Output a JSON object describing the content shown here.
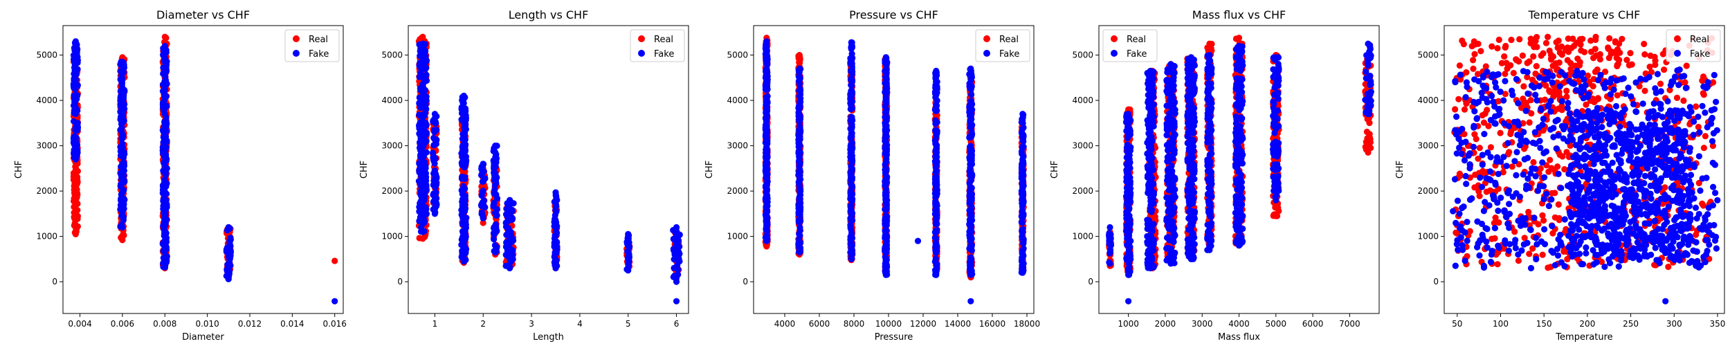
{
  "colors": {
    "real": "#ff0000",
    "fake": "#0000ff"
  },
  "chart_data": [
    {
      "type": "scatter",
      "title": "Diameter vs CHF",
      "xlabel": "Diameter",
      "ylabel": "CHF",
      "xlim": [
        0.0032,
        0.0164
      ],
      "ylim": [
        -700,
        5650
      ],
      "xticks": [
        0.004,
        0.006,
        0.008,
        0.01,
        0.012,
        0.014,
        0.016
      ],
      "xtick_labels": [
        "0.004",
        "0.006",
        "0.008",
        "0.010",
        "0.012",
        "0.014",
        "0.016"
      ],
      "yticks": [
        0,
        1000,
        2000,
        3000,
        4000,
        5000
      ],
      "ytick_labels": [
        "0",
        "1000",
        "2000",
        "3000",
        "4000",
        "5000"
      ],
      "legend": {
        "position": "top-right",
        "entries": [
          "Real",
          "Fake"
        ]
      },
      "series": [
        {
          "name": "Real",
          "clusters": [
            {
              "x": 0.0038,
              "xspread": 0.0001,
              "ymin": 1050,
              "ymax": 4950,
              "density": 2.5
            },
            {
              "x": 0.006,
              "xspread": 0.0001,
              "ymin": 920,
              "ymax": 4950,
              "density": 2.5
            },
            {
              "x": 0.008,
              "xspread": 0.0001,
              "ymin": 300,
              "ymax": 5400,
              "density": 2.5
            },
            {
              "x": 0.011,
              "xspread": 0.0001,
              "ymin": 100,
              "ymax": 1200,
              "density": 2.0
            }
          ],
          "points": [
            [
              0.016,
              460
            ]
          ]
        },
        {
          "name": "Fake",
          "clusters": [
            {
              "x": 0.0038,
              "xspread": 0.0001,
              "ymin": 2700,
              "ymax": 5300,
              "density": 2.5
            },
            {
              "x": 0.006,
              "xspread": 0.0001,
              "ymin": 1200,
              "ymax": 4850,
              "density": 2.5
            },
            {
              "x": 0.008,
              "xspread": 0.0001,
              "ymin": 320,
              "ymax": 5200,
              "density": 2.5
            },
            {
              "x": 0.011,
              "xspread": 0.0001,
              "ymin": 60,
              "ymax": 1200,
              "density": 2.5
            }
          ],
          "points": [
            [
              0.016,
              -430
            ]
          ]
        }
      ]
    },
    {
      "type": "scatter",
      "title": "Length vs CHF",
      "xlabel": "Length",
      "ylabel": "CHF",
      "xlim": [
        0.45,
        6.25
      ],
      "ylim": [
        -700,
        5650
      ],
      "xticks": [
        1,
        2,
        3,
        4,
        5,
        6
      ],
      "xtick_labels": [
        "1",
        "2",
        "3",
        "4",
        "5",
        "6"
      ],
      "yticks": [
        0,
        1000,
        2000,
        3000,
        4000,
        5000
      ],
      "ytick_labels": [
        "0",
        "1000",
        "2000",
        "3000",
        "4000",
        "5000"
      ],
      "legend": {
        "position": "top-right",
        "entries": [
          "Real",
          "Fake"
        ]
      },
      "series": [
        {
          "name": "Real",
          "clusters": [
            {
              "x": 0.75,
              "xspread": 0.08,
              "ymin": 950,
              "ymax": 5400,
              "density": 3.0
            },
            {
              "x": 1.0,
              "xspread": 0.04,
              "ymin": 1600,
              "ymax": 3500,
              "density": 1.5
            },
            {
              "x": 1.6,
              "xspread": 0.04,
              "ymin": 420,
              "ymax": 3600,
              "density": 2.0
            },
            {
              "x": 2.0,
              "xspread": 0.04,
              "ymin": 1300,
              "ymax": 2500,
              "density": 1.5
            },
            {
              "x": 2.25,
              "xspread": 0.04,
              "ymin": 600,
              "ymax": 2600,
              "density": 1.5
            },
            {
              "x": 2.55,
              "xspread": 0.08,
              "ymin": 350,
              "ymax": 1750,
              "density": 1.5
            },
            {
              "x": 3.5,
              "xspread": 0.03,
              "ymin": 300,
              "ymax": 1800,
              "density": 1.5
            },
            {
              "x": 5.0,
              "xspread": 0.03,
              "ymin": 300,
              "ymax": 1000,
              "density": 1.5
            },
            {
              "x": 6.0,
              "xspread": 0.06,
              "ymin": 200,
              "ymax": 1100,
              "density": 1.5
            }
          ],
          "points": []
        },
        {
          "name": "Fake",
          "clusters": [
            {
              "x": 0.75,
              "xspread": 0.08,
              "ymin": 1100,
              "ymax": 5250,
              "density": 3.0
            },
            {
              "x": 1.0,
              "xspread": 0.04,
              "ymin": 1500,
              "ymax": 3700,
              "density": 1.5
            },
            {
              "x": 1.6,
              "xspread": 0.05,
              "ymin": 450,
              "ymax": 4100,
              "density": 2.5
            },
            {
              "x": 2.0,
              "xspread": 0.04,
              "ymin": 1400,
              "ymax": 2600,
              "density": 1.5
            },
            {
              "x": 2.25,
              "xspread": 0.04,
              "ymin": 650,
              "ymax": 3000,
              "density": 1.5
            },
            {
              "x": 2.55,
              "xspread": 0.08,
              "ymin": 300,
              "ymax": 1800,
              "density": 2.5
            },
            {
              "x": 3.5,
              "xspread": 0.03,
              "ymin": 300,
              "ymax": 1970,
              "density": 2.0
            },
            {
              "x": 5.0,
              "xspread": 0.03,
              "ymin": 250,
              "ymax": 1050,
              "density": 2.0
            },
            {
              "x": 6.0,
              "xspread": 0.07,
              "ymin": 0,
              "ymax": 1200,
              "density": 2.0
            }
          ],
          "points": [
            [
              6.0,
              -430
            ]
          ]
        }
      ]
    },
    {
      "type": "scatter",
      "title": "Pressure vs CHF",
      "xlabel": "Pressure",
      "ylabel": "CHF",
      "xlim": [
        2200,
        18400
      ],
      "ylim": [
        -700,
        5650
      ],
      "xticks": [
        4000,
        6000,
        8000,
        10000,
        12000,
        14000,
        16000,
        18000
      ],
      "xtick_labels": [
        "4000",
        "6000",
        "8000",
        "10000",
        "12000",
        "14000",
        "16000",
        "18000"
      ],
      "yticks": [
        0,
        1000,
        2000,
        3000,
        4000,
        5000
      ],
      "ytick_labels": [
        "0",
        "1000",
        "2000",
        "3000",
        "4000",
        "5000"
      ],
      "legend": {
        "position": "top-right",
        "entries": [
          "Real",
          "Fake"
        ]
      },
      "series": [
        {
          "name": "Real",
          "clusters": [
            {
              "x": 2950,
              "xspread": 60,
              "ymin": 780,
              "ymax": 5380,
              "density": 3.0
            },
            {
              "x": 4850,
              "xspread": 60,
              "ymin": 600,
              "ymax": 5000,
              "density": 2.5
            },
            {
              "x": 7850,
              "xspread": 60,
              "ymin": 480,
              "ymax": 4900,
              "density": 2.5
            },
            {
              "x": 9850,
              "xspread": 60,
              "ymin": 180,
              "ymax": 4950,
              "density": 2.5
            },
            {
              "x": 12750,
              "xspread": 60,
              "ymin": 180,
              "ymax": 4000,
              "density": 2.0
            },
            {
              "x": 14750,
              "xspread": 80,
              "ymin": 100,
              "ymax": 4600,
              "density": 2.0
            },
            {
              "x": 17750,
              "xspread": 60,
              "ymin": 250,
              "ymax": 3500,
              "density": 2.0
            }
          ],
          "points": []
        },
        {
          "name": "Fake",
          "clusters": [
            {
              "x": 2950,
              "xspread": 60,
              "ymin": 900,
              "ymax": 5300,
              "density": 3.0
            },
            {
              "x": 4850,
              "xspread": 60,
              "ymin": 650,
              "ymax": 4700,
              "density": 2.5
            },
            {
              "x": 7850,
              "xspread": 60,
              "ymin": 500,
              "ymax": 5280,
              "density": 2.5
            },
            {
              "x": 9850,
              "xspread": 60,
              "ymin": 150,
              "ymax": 4950,
              "density": 2.5
            },
            {
              "x": 12750,
              "xspread": 60,
              "ymin": 150,
              "ymax": 4650,
              "density": 2.0
            },
            {
              "x": 14750,
              "xspread": 80,
              "ymin": 150,
              "ymax": 4700,
              "density": 2.0
            },
            {
              "x": 17750,
              "xspread": 60,
              "ymin": 200,
              "ymax": 3700,
              "density": 2.0
            }
          ],
          "points": [
            [
              11700,
              900
            ],
            [
              14750,
              -430
            ]
          ]
        }
      ]
    },
    {
      "type": "scatter",
      "title": "Mass flux vs CHF",
      "xlabel": "Mass flux",
      "ylabel": "CHF",
      "xlim": [
        200,
        7800
      ],
      "ylim": [
        -700,
        5650
      ],
      "xticks": [
        1000,
        2000,
        3000,
        4000,
        5000,
        6000,
        7000
      ],
      "xtick_labels": [
        "1000",
        "2000",
        "3000",
        "4000",
        "5000",
        "6000",
        "7000"
      ],
      "yticks": [
        0,
        1000,
        2000,
        3000,
        4000,
        5000
      ],
      "ytick_labels": [
        "0",
        "1000",
        "2000",
        "3000",
        "4000",
        "5000"
      ],
      "legend": {
        "position": "top-left",
        "entries": [
          "Real",
          "Fake"
        ]
      },
      "series": [
        {
          "name": "Real",
          "clusters": [
            {
              "x": 500,
              "xspread": 30,
              "ymin": 350,
              "ymax": 1100,
              "density": 1.5
            },
            {
              "x": 1000,
              "xspread": 60,
              "ymin": 200,
              "ymax": 3800,
              "density": 2.5
            },
            {
              "x": 1650,
              "xspread": 90,
              "ymin": 300,
              "ymax": 4650,
              "density": 2.5
            },
            {
              "x": 2150,
              "xspread": 100,
              "ymin": 450,
              "ymax": 4800,
              "density": 2.5
            },
            {
              "x": 2700,
              "xspread": 100,
              "ymin": 600,
              "ymax": 4950,
              "density": 2.5
            },
            {
              "x": 3200,
              "xspread": 60,
              "ymin": 800,
              "ymax": 5250,
              "density": 2.0
            },
            {
              "x": 4000,
              "xspread": 100,
              "ymin": 800,
              "ymax": 5380,
              "density": 2.5
            },
            {
              "x": 5000,
              "xspread": 80,
              "ymin": 1450,
              "ymax": 5000,
              "density": 2.0
            },
            {
              "x": 7500,
              "xspread": 80,
              "ymin": 2850,
              "ymax": 4950,
              "density": 1.5
            }
          ],
          "points": []
        },
        {
          "name": "Fake",
          "clusters": [
            {
              "x": 500,
              "xspread": 30,
              "ymin": 400,
              "ymax": 1200,
              "density": 1.5
            },
            {
              "x": 1000,
              "xspread": 60,
              "ymin": 150,
              "ymax": 3700,
              "density": 2.5
            },
            {
              "x": 1600,
              "xspread": 90,
              "ymin": 300,
              "ymax": 4650,
              "density": 2.5
            },
            {
              "x": 2150,
              "xspread": 120,
              "ymin": 400,
              "ymax": 4800,
              "density": 2.5
            },
            {
              "x": 2700,
              "xspread": 100,
              "ymin": 500,
              "ymax": 4950,
              "density": 2.5
            },
            {
              "x": 3200,
              "xspread": 60,
              "ymin": 700,
              "ymax": 5000,
              "density": 2.0
            },
            {
              "x": 4000,
              "xspread": 100,
              "ymin": 800,
              "ymax": 5200,
              "density": 2.5
            },
            {
              "x": 5000,
              "xspread": 80,
              "ymin": 1800,
              "ymax": 4950,
              "density": 2.0
            },
            {
              "x": 7500,
              "xspread": 80,
              "ymin": 3700,
              "ymax": 5250,
              "density": 1.5
            }
          ],
          "points": [
            [
              1000,
              -430
            ]
          ]
        }
      ]
    },
    {
      "type": "scatter",
      "title": "Temperature vs CHF",
      "xlabel": "Temperature",
      "ylabel": "CHF",
      "xlim": [
        35,
        358
      ],
      "ylim": [
        -700,
        5650
      ],
      "xticks": [
        50,
        100,
        150,
        200,
        250,
        300,
        350
      ],
      "xtick_labels": [
        "50",
        "100",
        "150",
        "200",
        "250",
        "300",
        "350"
      ],
      "yticks": [
        0,
        1000,
        2000,
        3000,
        4000,
        5000
      ],
      "ytick_labels": [
        "0",
        "1000",
        "2000",
        "3000",
        "4000",
        "5000"
      ],
      "legend": {
        "position": "top-right",
        "entries": [
          "Real",
          "Fake"
        ]
      },
      "series": [
        {
          "name": "Real",
          "clouds": [
            {
              "xmin": 45,
              "xmax": 345,
              "ymin": 300,
              "ymax": 5400,
              "count": 600
            },
            {
              "xmin": 120,
              "xmax": 240,
              "ymin": 3800,
              "ymax": 5400,
              "count": 120
            }
          ],
          "points": []
        },
        {
          "name": "Fake",
          "clouds": [
            {
              "xmin": 45,
              "xmax": 350,
              "ymin": 300,
              "ymax": 4700,
              "count": 650
            },
            {
              "xmin": 180,
              "xmax": 320,
              "ymin": 500,
              "ymax": 3800,
              "count": 700
            }
          ],
          "points": [
            [
              290,
              -430
            ]
          ]
        }
      ]
    }
  ]
}
